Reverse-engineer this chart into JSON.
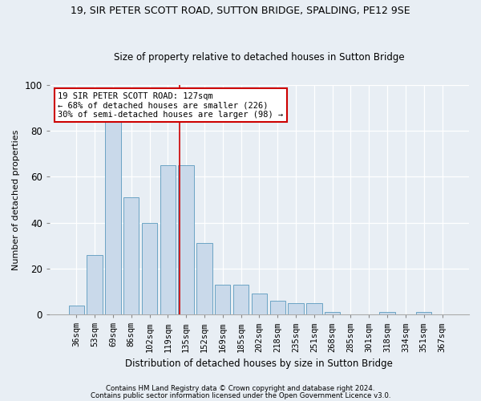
{
  "title1": "19, SIR PETER SCOTT ROAD, SUTTON BRIDGE, SPALDING, PE12 9SE",
  "title2": "Size of property relative to detached houses in Sutton Bridge",
  "xlabel": "Distribution of detached houses by size in Sutton Bridge",
  "ylabel": "Number of detached properties",
  "categories": [
    "36sqm",
    "53sqm",
    "69sqm",
    "86sqm",
    "102sqm",
    "119sqm",
    "135sqm",
    "152sqm",
    "169sqm",
    "185sqm",
    "202sqm",
    "218sqm",
    "235sqm",
    "251sqm",
    "268sqm",
    "285sqm",
    "301sqm",
    "318sqm",
    "334sqm",
    "351sqm",
    "367sqm"
  ],
  "values": [
    4,
    26,
    84,
    51,
    40,
    65,
    65,
    31,
    13,
    13,
    9,
    6,
    5,
    5,
    1,
    0,
    0,
    1,
    0,
    1,
    0
  ],
  "bar_color": "#c9d9ea",
  "bar_edge_color": "#5a9abe",
  "ylim": [
    0,
    100
  ],
  "yticks": [
    0,
    20,
    40,
    60,
    80,
    100
  ],
  "vline_x": 5.62,
  "vline_color": "#cc0000",
  "annotation_text": "19 SIR PETER SCOTT ROAD: 127sqm\n← 68% of detached houses are smaller (226)\n30% of semi-detached houses are larger (98) →",
  "annotation_box_color": "#ffffff",
  "annotation_edge_color": "#cc0000",
  "footer1": "Contains HM Land Registry data © Crown copyright and database right 2024.",
  "footer2": "Contains public sector information licensed under the Open Government Licence v3.0.",
  "background_color": "#e8eef4",
  "plot_background": "#e8eef4",
  "grid_color": "#ffffff",
  "title1_fontsize": 9.0,
  "title2_fontsize": 8.5
}
